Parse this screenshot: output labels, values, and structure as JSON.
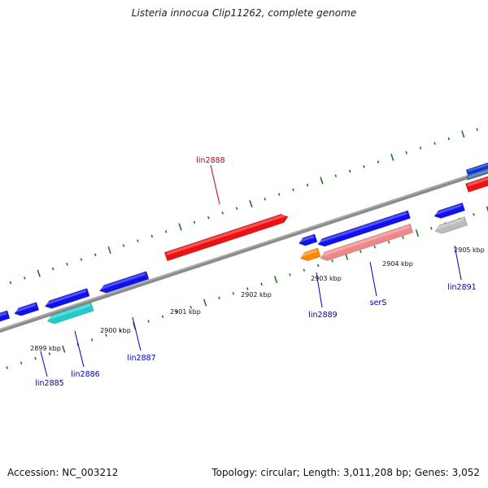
{
  "title": "Listeria innocua Clip11262, complete genome",
  "footer": {
    "accession": "Accession: NC_003212",
    "summary": "Topology: circular; Length: 3,011,208 bp; Genes: 3,052"
  },
  "colors": {
    "backbone": "#8c8c8c",
    "tick": "#1a7a1a",
    "label_forward": "#cc0000",
    "label_reverse": "#0000bb"
  },
  "kbp_ticks": [
    {
      "kbp": 2899,
      "label": "2899 kbp"
    },
    {
      "kbp": 2900,
      "label": "2900 kbp"
    },
    {
      "kbp": 2901,
      "label": "2901 kbp"
    },
    {
      "kbp": 2902,
      "label": "2902 kbp"
    },
    {
      "kbp": 2903,
      "label": "2903 kbp"
    },
    {
      "kbp": 2904,
      "label": "2904 kbp"
    },
    {
      "kbp": 2905,
      "label": "2905 kbp"
    }
  ],
  "genes": [
    {
      "name": "lin2888",
      "strand": "+",
      "color": "#ee1111",
      "labeled": true
    },
    {
      "name": "",
      "strand": "+",
      "color": "#ee1111",
      "labeled": false
    },
    {
      "name": "",
      "strand": "+",
      "color": "#1133dd",
      "labeled": false
    },
    {
      "name": "",
      "strand": "+",
      "color": "#4477aa",
      "labeled": false
    },
    {
      "name": "lin2885",
      "strand": "-",
      "color": "#1111ee",
      "labeled": true
    },
    {
      "name": "lin2886",
      "strand": "-",
      "color": "#1111ee",
      "labeled": true
    },
    {
      "name": "",
      "strand": "-",
      "color": "#22cccc",
      "labeled": false
    },
    {
      "name": "lin2887",
      "strand": "-",
      "color": "#1111ee",
      "labeled": true
    },
    {
      "name": "lin2889",
      "strand": "-",
      "color": "#1111ee",
      "labeled": true
    },
    {
      "name": "",
      "strand": "-",
      "color": "#ff8800",
      "labeled": false
    },
    {
      "name": "serS",
      "strand": "-",
      "color": "#1111ee",
      "labeled": true
    },
    {
      "name": "",
      "strand": "-",
      "color": "#ee8888",
      "labeled": false
    },
    {
      "name": "lin2891",
      "strand": "-",
      "color": "#1111ee",
      "labeled": true
    },
    {
      "name": "",
      "strand": "-",
      "color": "#bbbbbb",
      "labeled": false
    },
    {
      "name": "",
      "strand": "-",
      "color": "#1111ee",
      "labeled": false
    }
  ]
}
